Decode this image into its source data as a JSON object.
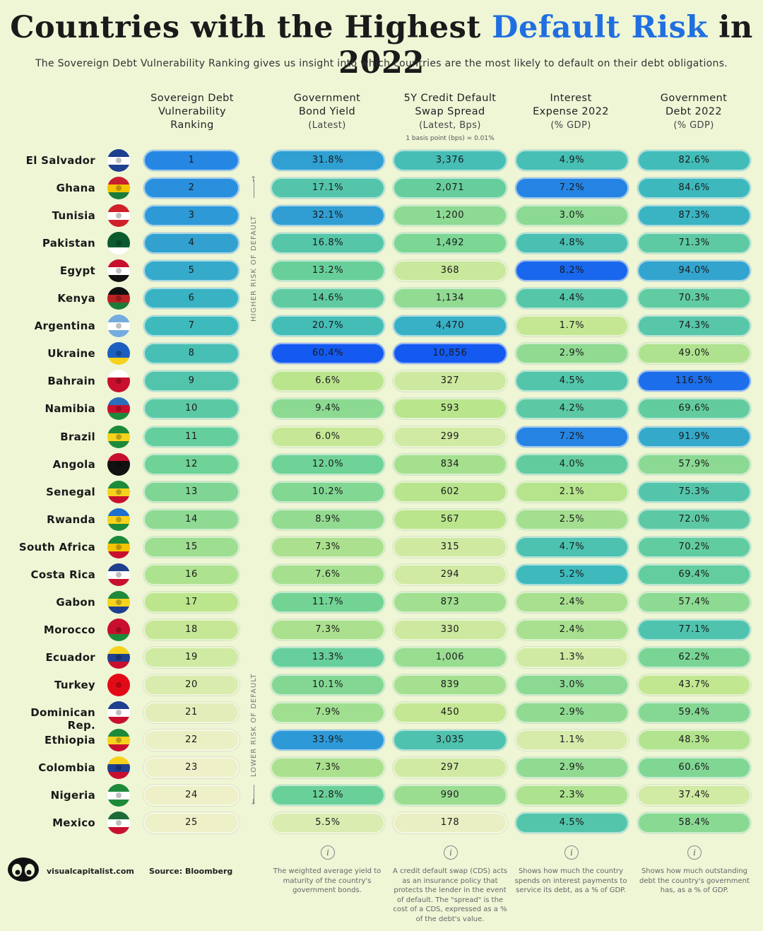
{
  "header": {
    "title_pre": "Countries with the Highest ",
    "title_highlight": "Default Risk",
    "title_post": " in 2022",
    "subtitle": "The Sovereign Debt Vulnerability Ranking gives us insight into which countries are the most likely to default on their debt obligations."
  },
  "columns": [
    {
      "l1": "Sovereign Debt",
      "l2": "Vulnerability",
      "l3": "Ranking"
    },
    {
      "l1": "Government",
      "l2": "Bond Yield",
      "l3": "(Latest)"
    },
    {
      "l1": "5Y Credit Default",
      "l2": "Swap Spread",
      "l3": "(Latest, Bps)"
    },
    {
      "l1": "Interest",
      "l2": "Expense 2022",
      "l3": "(% GDP)"
    },
    {
      "l1": "Government",
      "l2": "Debt 2022",
      "l3": "(% GDP)"
    }
  ],
  "cds_note": "1 basis point (bps) = 0.01%",
  "axis_labels": {
    "higher": "HIGHER RISK OF DEFAULT",
    "lower": "LOWER RISK OF DEFAULT"
  },
  "chart_data": {
    "type": "table",
    "countries": [
      "El Salvador",
      "Ghana",
      "Tunisia",
      "Pakistan",
      "Egypt",
      "Kenya",
      "Argentina",
      "Ukraine",
      "Bahrain",
      "Namibia",
      "Brazil",
      "Angola",
      "Senegal",
      "Rwanda",
      "South Africa",
      "Costa Rica",
      "Gabon",
      "Morocco",
      "Ecuador",
      "Turkey",
      "Dominican Rep.",
      "Ethiopia",
      "Colombia",
      "Nigeria",
      "Mexico"
    ],
    "rank": [
      1,
      2,
      3,
      4,
      5,
      6,
      7,
      8,
      9,
      10,
      11,
      12,
      13,
      14,
      15,
      16,
      17,
      18,
      19,
      20,
      21,
      22,
      23,
      24,
      25
    ],
    "bond_yield": [
      "31.8%",
      "17.1%",
      "32.1%",
      "16.8%",
      "13.2%",
      "14.6%",
      "20.7%",
      "60.4%",
      "6.6%",
      "9.4%",
      "6.0%",
      "12.0%",
      "10.2%",
      "8.9%",
      "7.3%",
      "7.6%",
      "11.7%",
      "7.3%",
      "13.3%",
      "10.1%",
      "7.9%",
      "33.9%",
      "7.3%",
      "12.8%",
      "5.5%"
    ],
    "cds_spread": [
      "3,376",
      "2,071",
      "1,200",
      "1,492",
      "368",
      "1,134",
      "4,470",
      "10,856",
      "327",
      "593",
      "299",
      "834",
      "602",
      "567",
      "315",
      "294",
      "873",
      "330",
      "1,006",
      "839",
      "450",
      "3,035",
      "297",
      "990",
      "178"
    ],
    "interest_expense": [
      "4.9%",
      "7.2%",
      "3.0%",
      "4.8%",
      "8.2%",
      "4.4%",
      "1.7%",
      "2.9%",
      "4.5%",
      "4.2%",
      "7.2%",
      "4.0%",
      "2.1%",
      "2.5%",
      "4.7%",
      "5.2%",
      "2.4%",
      "2.4%",
      "1.3%",
      "3.0%",
      "2.9%",
      "1.1%",
      "2.9%",
      "2.3%",
      "4.5%"
    ],
    "gov_debt": [
      "82.6%",
      "84.6%",
      "87.3%",
      "71.3%",
      "94.0%",
      "70.3%",
      "74.3%",
      "49.0%",
      "116.5%",
      "69.6%",
      "91.9%",
      "57.9%",
      "75.3%",
      "72.0%",
      "70.2%",
      "69.4%",
      "57.4%",
      "77.1%",
      "62.2%",
      "43.7%",
      "59.4%",
      "48.3%",
      "60.6%",
      "37.4%",
      "58.4%"
    ]
  },
  "footer": {
    "site": "visualcapitalist.com",
    "source": "Source: Bloomberg",
    "notes": [
      "The weighted average yield to maturity of the country's government bonds.",
      "A credit default swap (CDS) acts as an insurance policy that protects the lender in the event of default. The \"spread\" is the cost of a CDS, expressed as a % of the debt's value.",
      "Shows how much the country spends on interest payments to service its debt, as a % of GDP.",
      "Shows how much outstanding debt the country's government has, as a % of GDP."
    ]
  }
}
